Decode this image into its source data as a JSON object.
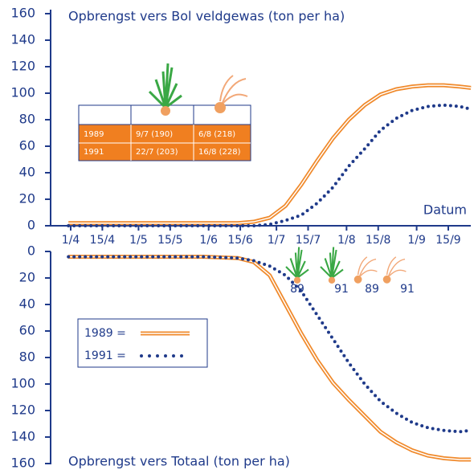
{
  "chart_data": [
    {
      "type": "line",
      "title": "Opbrengst vers Bol veldgewas (ton per ha)",
      "x_label": "Datum",
      "x": [
        90,
        150,
        165,
        172,
        179,
        186,
        193,
        200,
        207,
        214,
        221,
        228,
        235,
        242,
        249,
        256,
        263,
        268
      ],
      "xlim": [
        82,
        268
      ],
      "xticks": [
        {
          "value": 91,
          "label": "1/4"
        },
        {
          "value": 105,
          "label": "15/4"
        },
        {
          "value": 121,
          "label": "1/5"
        },
        {
          "value": 135,
          "label": "15/5"
        },
        {
          "value": 152,
          "label": "1/6"
        },
        {
          "value": 166,
          "label": "15/6"
        },
        {
          "value": 182,
          "label": "1/7"
        },
        {
          "value": 196,
          "label": "15/7"
        },
        {
          "value": 213,
          "label": "1/8"
        },
        {
          "value": 227,
          "label": "15/8"
        },
        {
          "value": 244,
          "label": "1/9"
        },
        {
          "value": 258,
          "label": "15/9"
        }
      ],
      "ylim": [
        0,
        160
      ],
      "yticks": [
        0,
        20,
        40,
        60,
        80,
        100,
        120,
        140,
        160
      ],
      "series": [
        {
          "name": "1989 =",
          "color": "#f08a2c",
          "style": "double",
          "values": [
            2,
            2,
            2,
            3,
            6,
            15,
            31,
            49,
            66,
            80,
            91,
            99,
            103,
            105,
            106,
            106,
            105,
            104
          ]
        },
        {
          "name": "1991 =",
          "color": "#1f3a8a",
          "style": "dotted",
          "values": [
            0,
            0,
            0,
            0,
            1,
            4,
            8,
            17,
            29,
            45,
            58,
            72,
            81,
            87,
            90,
            91,
            90,
            88
          ]
        }
      ],
      "table": {
        "rows": [
          [
            "1989",
            "9/7 (190)",
            "6/8 (218)"
          ],
          [
            "1991",
            "22/7 (203)",
            "16/8 (228)"
          ]
        ]
      }
    },
    {
      "type": "line",
      "title": "Opbrengst vers Totaal (ton per ha)",
      "ylim": [
        160,
        0
      ],
      "yticks": [
        0,
        20,
        40,
        60,
        80,
        100,
        120,
        140,
        160
      ],
      "series": [
        {
          "name": "1989 =",
          "color": "#f08a2c",
          "style": "double",
          "values": [
            4,
            4,
            5,
            8,
            18,
            40,
            62,
            82,
            99,
            112,
            124,
            136,
            144,
            150,
            154,
            156,
            157,
            157
          ]
        },
        {
          "name": "1991 =",
          "color": "#1f3a8a",
          "style": "dotted",
          "values": [
            4,
            4,
            5,
            7,
            11,
            18,
            30,
            48,
            66,
            84,
            100,
            113,
            122,
            129,
            133,
            135,
            136,
            135
          ]
        }
      ],
      "markers": [
        "89",
        "91",
        "89",
        "91"
      ]
    }
  ]
}
